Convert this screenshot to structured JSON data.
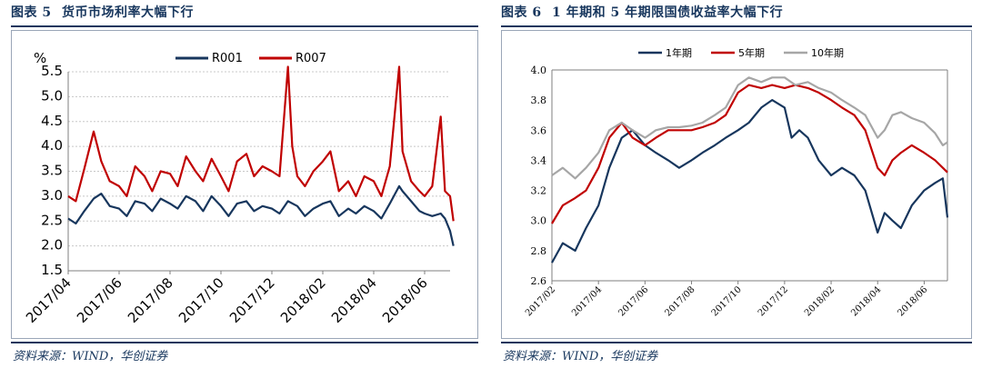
{
  "left": {
    "figure_label": "图表 5",
    "figure_title": "货币市场利率大幅下行",
    "source": "资料来源：WIND，华创证券"
  },
  "right": {
    "figure_label": "图表 6",
    "figure_title": "1 年期和 5 年期限国债收益率大幅下行",
    "source": "资料来源：WIND，华创证券"
  },
  "colors": {
    "navy": "#17365d",
    "red": "#c00000",
    "gray": "#a6a6a6"
  },
  "chart_data": [
    {
      "type": "line",
      "title": "",
      "ylabel": "%",
      "ylim": [
        1.5,
        5.5
      ],
      "yticks": [
        "1.5",
        "2.0",
        "2.5",
        "3.0",
        "3.5",
        "4.0",
        "4.5",
        "5.0",
        "5.5"
      ],
      "xlim": [
        "2017/04",
        "2018/07"
      ],
      "xticks": [
        "2017/04",
        "2017/06",
        "2017/08",
        "2017/10",
        "2017/12",
        "2018/02",
        "2018/04",
        "2018/06"
      ],
      "grid": true,
      "legend_position": "top-center",
      "series": [
        {
          "name": "R001",
          "color": "#17365d",
          "points": [
            [
              "2017/04",
              2.55
            ],
            [
              "2017/04/10",
              2.45
            ],
            [
              "2017/04/20",
              2.7
            ],
            [
              "2017/05",
              2.95
            ],
            [
              "2017/05/10",
              3.05
            ],
            [
              "2017/05/20",
              2.8
            ],
            [
              "2017/06",
              2.75
            ],
            [
              "2017/06/10",
              2.6
            ],
            [
              "2017/06/20",
              2.9
            ],
            [
              "2017/07",
              2.85
            ],
            [
              "2017/07/10",
              2.7
            ],
            [
              "2017/07/20",
              2.95
            ],
            [
              "2017/08",
              2.85
            ],
            [
              "2017/08/10",
              2.75
            ],
            [
              "2017/08/20",
              3.0
            ],
            [
              "2017/09",
              2.9
            ],
            [
              "2017/09/10",
              2.7
            ],
            [
              "2017/09/20",
              3.0
            ],
            [
              "2017/10",
              2.8
            ],
            [
              "2017/10/10",
              2.6
            ],
            [
              "2017/10/20",
              2.85
            ],
            [
              "2017/11",
              2.9
            ],
            [
              "2017/11/10",
              2.7
            ],
            [
              "2017/11/20",
              2.8
            ],
            [
              "2017/12",
              2.75
            ],
            [
              "2017/12/10",
              2.65
            ],
            [
              "2017/12/20",
              2.9
            ],
            [
              "2018/01",
              2.8
            ],
            [
              "2018/01/10",
              2.6
            ],
            [
              "2018/01/20",
              2.75
            ],
            [
              "2018/02",
              2.85
            ],
            [
              "2018/02/10",
              2.9
            ],
            [
              "2018/02/20",
              2.6
            ],
            [
              "2018/03",
              2.75
            ],
            [
              "2018/03/10",
              2.65
            ],
            [
              "2018/03/20",
              2.8
            ],
            [
              "2018/04",
              2.7
            ],
            [
              "2018/04/10",
              2.55
            ],
            [
              "2018/04/20",
              2.85
            ],
            [
              "2018/05",
              3.2
            ],
            [
              "2018/05/05",
              3.1
            ],
            [
              "2018/05/15",
              2.9
            ],
            [
              "2018/05/25",
              2.7
            ],
            [
              "2018/06",
              2.65
            ],
            [
              "2018/06/10",
              2.6
            ],
            [
              "2018/06/20",
              2.65
            ],
            [
              "2018/06/25",
              2.55
            ],
            [
              "2018/07",
              2.3
            ],
            [
              "2018/07/05",
              2.0
            ]
          ]
        },
        {
          "name": "R007",
          "color": "#c00000",
          "points": [
            [
              "2017/04",
              3.0
            ],
            [
              "2017/04/10",
              2.9
            ],
            [
              "2017/04/20",
              3.55
            ],
            [
              "2017/05",
              4.3
            ],
            [
              "2017/05/10",
              3.7
            ],
            [
              "2017/05/20",
              3.3
            ],
            [
              "2017/06",
              3.2
            ],
            [
              "2017/06/10",
              3.0
            ],
            [
              "2017/06/20",
              3.6
            ],
            [
              "2017/07",
              3.4
            ],
            [
              "2017/07/10",
              3.1
            ],
            [
              "2017/07/20",
              3.5
            ],
            [
              "2017/08",
              3.45
            ],
            [
              "2017/08/10",
              3.2
            ],
            [
              "2017/08/20",
              3.8
            ],
            [
              "2017/09",
              3.5
            ],
            [
              "2017/09/10",
              3.3
            ],
            [
              "2017/09/20",
              3.75
            ],
            [
              "2017/10",
              3.4
            ],
            [
              "2017/10/10",
              3.1
            ],
            [
              "2017/10/20",
              3.7
            ],
            [
              "2017/11",
              3.85
            ],
            [
              "2017/11/10",
              3.4
            ],
            [
              "2017/11/20",
              3.6
            ],
            [
              "2017/12",
              3.5
            ],
            [
              "2017/12/10",
              3.4
            ],
            [
              "2017/12/20",
              5.6
            ],
            [
              "2017/12/25",
              4.0
            ],
            [
              "2018/01",
              3.4
            ],
            [
              "2018/01/10",
              3.2
            ],
            [
              "2018/01/20",
              3.5
            ],
            [
              "2018/02",
              3.7
            ],
            [
              "2018/02/10",
              3.9
            ],
            [
              "2018/02/20",
              3.1
            ],
            [
              "2018/03",
              3.3
            ],
            [
              "2018/03/10",
              3.0
            ],
            [
              "2018/03/20",
              3.4
            ],
            [
              "2018/04",
              3.3
            ],
            [
              "2018/04/10",
              3.0
            ],
            [
              "2018/04/20",
              3.6
            ],
            [
              "2018/05",
              5.6
            ],
            [
              "2018/05/05",
              3.9
            ],
            [
              "2018/05/15",
              3.3
            ],
            [
              "2018/05/25",
              3.1
            ],
            [
              "2018/06",
              3.0
            ],
            [
              "2018/06/10",
              3.2
            ],
            [
              "2018/06/20",
              4.6
            ],
            [
              "2018/06/25",
              3.1
            ],
            [
              "2018/07",
              3.0
            ],
            [
              "2018/07/05",
              2.5
            ]
          ]
        }
      ]
    },
    {
      "type": "line",
      "title": "",
      "ylim": [
        2.6,
        4.0
      ],
      "yticks": [
        "2.6",
        "2.8",
        "3.0",
        "3.2",
        "3.4",
        "3.6",
        "3.8",
        "4.0"
      ],
      "xlim": [
        "2017/02",
        "2018/07"
      ],
      "xticks": [
        "2017/02",
        "2017/04",
        "2017/06",
        "2017/08",
        "2017/10",
        "2017/12",
        "2018/02",
        "2018/04",
        "2018/06"
      ],
      "grid": false,
      "legend_position": "top-center",
      "series": [
        {
          "name": "1年期",
          "color": "#17365d",
          "points": [
            [
              "2017/02",
              2.72
            ],
            [
              "2017/02/15",
              2.85
            ],
            [
              "2017/03",
              2.8
            ],
            [
              "2017/03/15",
              2.95
            ],
            [
              "2017/04",
              3.1
            ],
            [
              "2017/04/15",
              3.35
            ],
            [
              "2017/05",
              3.55
            ],
            [
              "2017/05/15",
              3.6
            ],
            [
              "2017/06",
              3.5
            ],
            [
              "2017/06/15",
              3.45
            ],
            [
              "2017/07",
              3.4
            ],
            [
              "2017/07/15",
              3.35
            ],
            [
              "2017/08",
              3.4
            ],
            [
              "2017/08/15",
              3.45
            ],
            [
              "2017/09",
              3.5
            ],
            [
              "2017/09/15",
              3.55
            ],
            [
              "2017/10",
              3.6
            ],
            [
              "2017/10/15",
              3.65
            ],
            [
              "2017/11",
              3.75
            ],
            [
              "2017/11/15",
              3.8
            ],
            [
              "2017/12",
              3.75
            ],
            [
              "2017/12/10",
              3.55
            ],
            [
              "2017/12/20",
              3.6
            ],
            [
              "2018/01",
              3.55
            ],
            [
              "2018/01/15",
              3.4
            ],
            [
              "2018/02",
              3.3
            ],
            [
              "2018/02/15",
              3.35
            ],
            [
              "2018/03",
              3.3
            ],
            [
              "2018/03/15",
              3.2
            ],
            [
              "2018/04",
              2.92
            ],
            [
              "2018/04/10",
              3.05
            ],
            [
              "2018/04/20",
              3.0
            ],
            [
              "2018/05",
              2.95
            ],
            [
              "2018/05/15",
              3.1
            ],
            [
              "2018/06",
              3.2
            ],
            [
              "2018/06/15",
              3.25
            ],
            [
              "2018/06/25",
              3.28
            ],
            [
              "2018/07",
              3.02
            ]
          ]
        },
        {
          "name": "5年期",
          "color": "#c00000",
          "points": [
            [
              "2017/02",
              2.98
            ],
            [
              "2017/02/15",
              3.1
            ],
            [
              "2017/03",
              3.15
            ],
            [
              "2017/03/15",
              3.2
            ],
            [
              "2017/04",
              3.35
            ],
            [
              "2017/04/15",
              3.55
            ],
            [
              "2017/05",
              3.65
            ],
            [
              "2017/05/15",
              3.55
            ],
            [
              "2017/06",
              3.5
            ],
            [
              "2017/06/15",
              3.55
            ],
            [
              "2017/07",
              3.6
            ],
            [
              "2017/07/15",
              3.6
            ],
            [
              "2017/08",
              3.6
            ],
            [
              "2017/08/15",
              3.62
            ],
            [
              "2017/09",
              3.65
            ],
            [
              "2017/09/15",
              3.7
            ],
            [
              "2017/10",
              3.85
            ],
            [
              "2017/10/15",
              3.9
            ],
            [
              "2017/11",
              3.88
            ],
            [
              "2017/11/15",
              3.9
            ],
            [
              "2017/12",
              3.88
            ],
            [
              "2017/12/15",
              3.9
            ],
            [
              "2018/01",
              3.88
            ],
            [
              "2018/01/15",
              3.85
            ],
            [
              "2018/02",
              3.8
            ],
            [
              "2018/02/15",
              3.75
            ],
            [
              "2018/03",
              3.7
            ],
            [
              "2018/03/15",
              3.6
            ],
            [
              "2018/04",
              3.35
            ],
            [
              "2018/04/10",
              3.3
            ],
            [
              "2018/04/20",
              3.4
            ],
            [
              "2018/05",
              3.45
            ],
            [
              "2018/05/15",
              3.5
            ],
            [
              "2018/06",
              3.45
            ],
            [
              "2018/06/15",
              3.4
            ],
            [
              "2018/06/25",
              3.35
            ],
            [
              "2018/07",
              3.32
            ]
          ]
        },
        {
          "name": "10年期",
          "color": "#a6a6a6",
          "points": [
            [
              "2017/02",
              3.3
            ],
            [
              "2017/02/15",
              3.35
            ],
            [
              "2017/03",
              3.28
            ],
            [
              "2017/03/15",
              3.35
            ],
            [
              "2017/04",
              3.45
            ],
            [
              "2017/04/15",
              3.6
            ],
            [
              "2017/05",
              3.65
            ],
            [
              "2017/05/15",
              3.6
            ],
            [
              "2017/06",
              3.55
            ],
            [
              "2017/06/15",
              3.6
            ],
            [
              "2017/07",
              3.62
            ],
            [
              "2017/07/15",
              3.62
            ],
            [
              "2017/08",
              3.63
            ],
            [
              "2017/08/15",
              3.65
            ],
            [
              "2017/09",
              3.7
            ],
            [
              "2017/09/15",
              3.75
            ],
            [
              "2017/10",
              3.9
            ],
            [
              "2017/10/15",
              3.95
            ],
            [
              "2017/11",
              3.92
            ],
            [
              "2017/11/15",
              3.95
            ],
            [
              "2017/12",
              3.95
            ],
            [
              "2017/12/15",
              3.9
            ],
            [
              "2018/01",
              3.92
            ],
            [
              "2018/01/15",
              3.88
            ],
            [
              "2018/02",
              3.85
            ],
            [
              "2018/02/15",
              3.8
            ],
            [
              "2018/03",
              3.75
            ],
            [
              "2018/03/15",
              3.7
            ],
            [
              "2018/04",
              3.55
            ],
            [
              "2018/04/10",
              3.6
            ],
            [
              "2018/04/20",
              3.7
            ],
            [
              "2018/05",
              3.72
            ],
            [
              "2018/05/15",
              3.68
            ],
            [
              "2018/06",
              3.65
            ],
            [
              "2018/06/15",
              3.58
            ],
            [
              "2018/06/25",
              3.5
            ],
            [
              "2018/07",
              3.52
            ]
          ]
        }
      ]
    }
  ]
}
